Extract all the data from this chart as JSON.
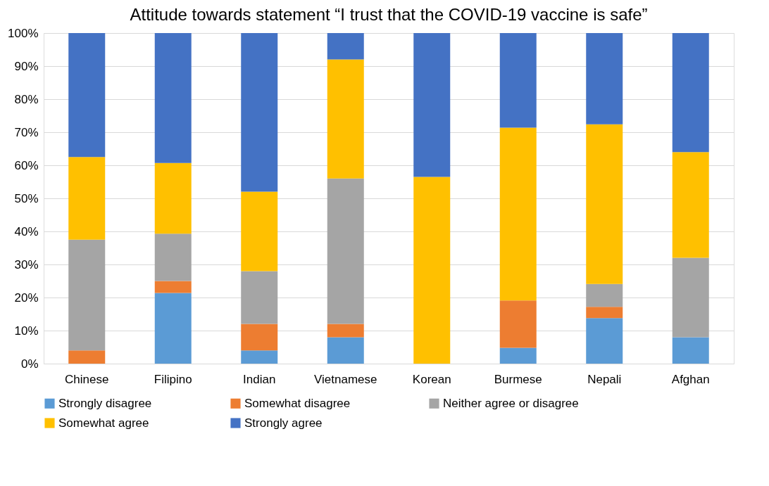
{
  "chart_data": {
    "type": "bar",
    "stacked": true,
    "title": "Attitude towards statement “I trust that the COVID-19 vaccine is safe”",
    "categories": [
      "Chinese",
      "Filipino",
      "Indian",
      "Vietnamese",
      "Korean",
      "Burmese",
      "Nepali",
      "Afghan"
    ],
    "series": [
      {
        "name": "Strongly disagree",
        "color": "#5b9bd5",
        "values": [
          0,
          21.4,
          4,
          8,
          0,
          4.8,
          13.8,
          8
        ]
      },
      {
        "name": "Somewhat disagree",
        "color": "#ed7d31",
        "values": [
          4,
          3.6,
          8,
          4,
          0,
          14.3,
          3.4,
          0
        ]
      },
      {
        "name": "Neither agree or disagree",
        "color": "#a5a5a5",
        "values": [
          33.5,
          14.3,
          16,
          44,
          0,
          0,
          6.9,
          24
        ]
      },
      {
        "name": "Somewhat agree",
        "color": "#ffc000",
        "values": [
          25,
          21.4,
          24,
          36,
          56.5,
          52.3,
          48.3,
          32
        ]
      },
      {
        "name": "Strongly agree",
        "color": "#4472c4",
        "values": [
          37.5,
          39.3,
          48,
          8,
          43.5,
          28.6,
          27.6,
          36
        ]
      }
    ],
    "ylim": [
      0,
      100
    ],
    "yticks": [
      {
        "value": 0,
        "label": "0%"
      },
      {
        "value": 10,
        "label": "10%"
      },
      {
        "value": 20,
        "label": "20%"
      },
      {
        "value": 30,
        "label": "30%"
      },
      {
        "value": 40,
        "label": "40%"
      },
      {
        "value": 50,
        "label": "50%"
      },
      {
        "value": 60,
        "label": "60%"
      },
      {
        "value": 70,
        "label": "70%"
      },
      {
        "value": 80,
        "label": "80%"
      },
      {
        "value": 90,
        "label": "90%"
      },
      {
        "value": 100,
        "label": "100%"
      }
    ],
    "grid": "y",
    "legend": "bottom"
  }
}
